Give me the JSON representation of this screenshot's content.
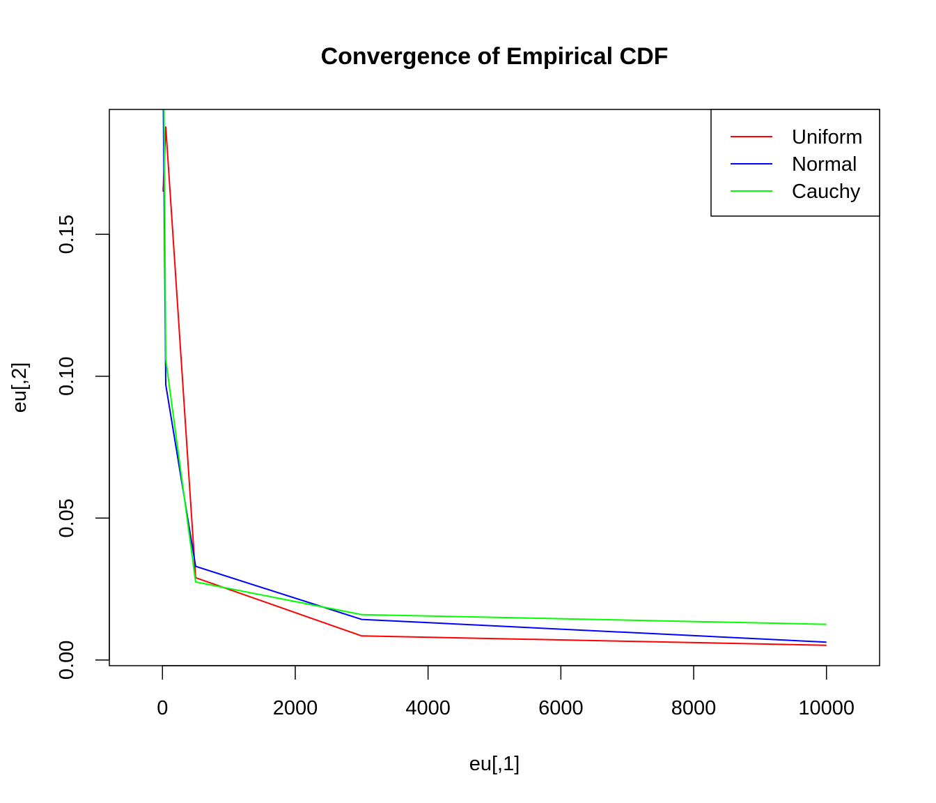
{
  "chart_data": {
    "type": "line",
    "title": "Convergence of Empirical CDF",
    "xlabel": "eu[,1]",
    "ylabel": "eu[,2]",
    "xlim": [
      -800,
      10800
    ],
    "ylim": [
      -0.002,
      0.194
    ],
    "x_ticks": [
      0,
      2000,
      4000,
      6000,
      8000,
      10000
    ],
    "x_tick_labels": [
      "0",
      "2000",
      "4000",
      "6000",
      "8000",
      "10000"
    ],
    "y_ticks": [
      0.0,
      0.05,
      0.1,
      0.15
    ],
    "y_tick_labels": [
      "0.00",
      "0.05",
      "0.10",
      "0.15"
    ],
    "grid": false,
    "legend_position": "top-right",
    "series": [
      {
        "name": "Uniform",
        "color": "#ff0000",
        "points": [
          [
            10,
            0.165
          ],
          [
            50,
            0.188
          ],
          [
            500,
            0.029
          ],
          [
            3000,
            0.0085
          ],
          [
            10000,
            0.0052
          ]
        ]
      },
      {
        "name": "Normal",
        "color": "#0000ff",
        "points": [
          [
            10,
            0.205
          ],
          [
            50,
            0.097
          ],
          [
            500,
            0.033
          ],
          [
            3000,
            0.0143
          ],
          [
            10000,
            0.0063
          ]
        ]
      },
      {
        "name": "Cauchy",
        "color": "#00ff00",
        "points": [
          [
            10,
            0.24
          ],
          [
            50,
            0.106
          ],
          [
            500,
            0.0275
          ],
          [
            3000,
            0.016
          ],
          [
            10000,
            0.0126
          ]
        ]
      }
    ]
  }
}
